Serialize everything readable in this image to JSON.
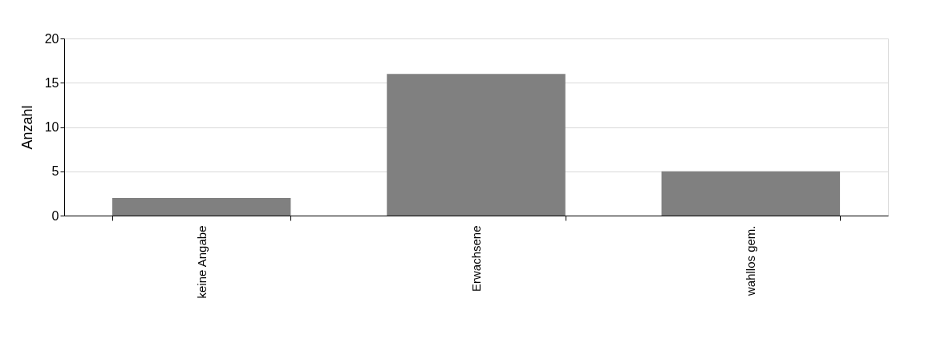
{
  "chart_data": {
    "type": "bar",
    "ylabel": "Anzahl",
    "categories": [
      "keine Angabe",
      "Erwachsene",
      "wahllos gem."
    ],
    "values": [
      2,
      16,
      5
    ],
    "color": "#808080",
    "ylim": [
      0,
      20
    ],
    "yticks": [
      0,
      5,
      10,
      15,
      20
    ],
    "grid": "y"
  }
}
